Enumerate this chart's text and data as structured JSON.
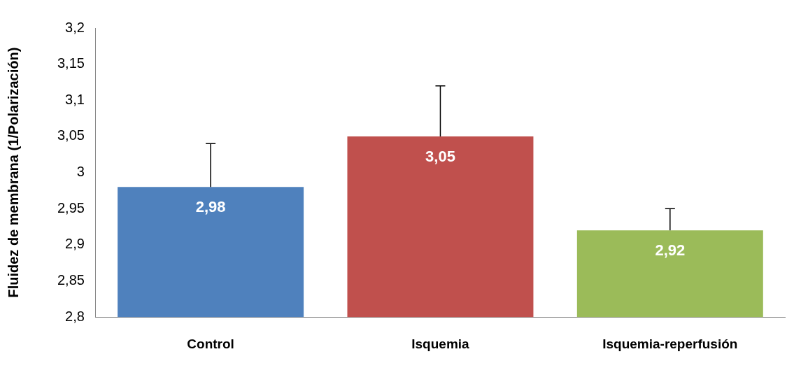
{
  "chart_data": {
    "type": "bar",
    "ylabel": "Fluidez de membrana (1/Polarización)",
    "categories": [
      "Control",
      "Isquemia",
      "Isquemia-reperfusión"
    ],
    "values": [
      2.98,
      3.05,
      2.92
    ],
    "colors": [
      "#4f81bd",
      "#c0504d",
      "#9bbb59"
    ],
    "errors": [
      [
        2.98,
        3.04
      ],
      [
        3.05,
        3.12
      ],
      [
        2.92,
        2.95
      ]
    ],
    "value_labels": [
      "2,98",
      "3,05",
      "2,92"
    ],
    "ylim": [
      2.8,
      3.2
    ],
    "yticks": [
      {
        "value": 2.8,
        "label": "2,8"
      },
      {
        "value": 2.85,
        "label": "2,85"
      },
      {
        "value": 2.9,
        "label": "2,9"
      },
      {
        "value": 2.95,
        "label": "2,95"
      },
      {
        "value": 3,
        "label": "3"
      },
      {
        "value": 3.05,
        "label": "3,05"
      },
      {
        "value": 3.1,
        "label": "3,1"
      },
      {
        "value": 3.15,
        "label": "3,15"
      },
      {
        "value": 3.2,
        "label": "3,2"
      }
    ],
    "grid": false,
    "legend": false
  }
}
